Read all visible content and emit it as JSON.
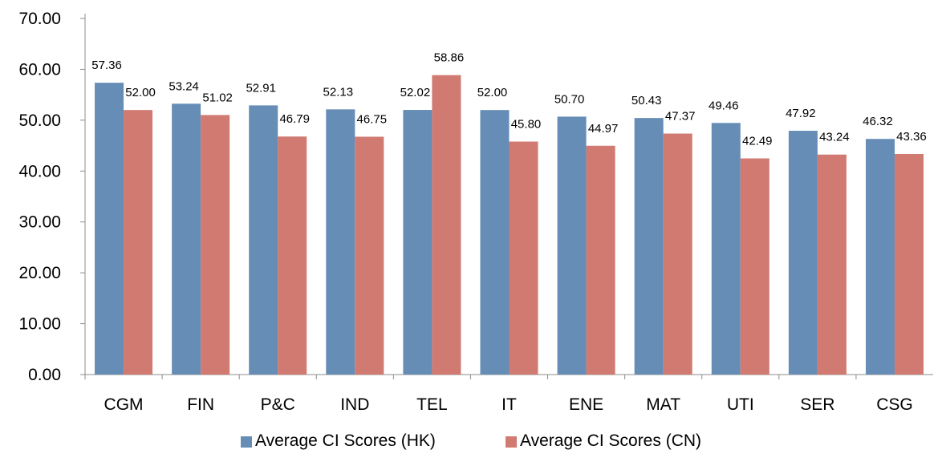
{
  "chart_data": {
    "type": "bar",
    "categories": [
      "CGM",
      "FIN",
      "P&C",
      "IND",
      "TEL",
      "IT",
      "ENE",
      "MAT",
      "UTI",
      "SER",
      "CSG"
    ],
    "series": [
      {
        "name": "Average CI Scores (HK)",
        "color": "#668db6",
        "values": [
          57.36,
          53.24,
          52.91,
          52.13,
          52.02,
          52.0,
          50.7,
          50.43,
          49.46,
          47.92,
          46.32
        ],
        "labels": [
          "57.36",
          "53.24",
          "52.91",
          "52.13",
          "52.02",
          "52.00",
          "50.70",
          "50.43",
          "49.46",
          "47.92",
          "46.32"
        ]
      },
      {
        "name": "Average CI Scores (CN)",
        "color": "#d07a72",
        "values": [
          52.0,
          51.02,
          46.79,
          46.75,
          58.86,
          45.8,
          44.97,
          47.37,
          42.49,
          43.24,
          43.36
        ],
        "labels": [
          "52.00",
          "51.02",
          "46.79",
          "46.75",
          "58.86",
          "45.80",
          "44.97",
          "47.37",
          "42.49",
          "43.24",
          "43.36"
        ]
      }
    ],
    "ylim": [
      0,
      70
    ],
    "yticks": [
      "0.00",
      "10.00",
      "20.00",
      "30.00",
      "40.00",
      "50.00",
      "60.00",
      "70.00"
    ],
    "legend_position": "bottom",
    "grid": false
  }
}
